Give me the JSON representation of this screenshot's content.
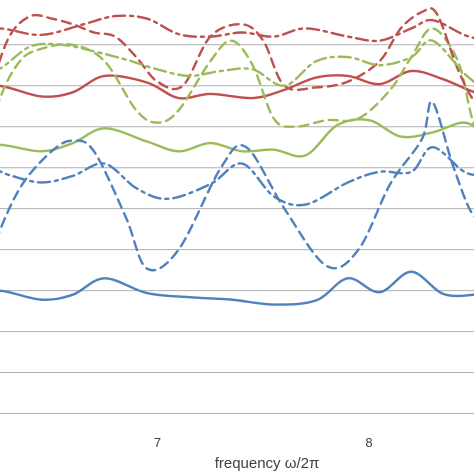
{
  "chart_data": {
    "type": "line",
    "title": "",
    "xlabel": "frequency ω/2π",
    "ylabel": "",
    "xlim": [
      6.1,
      8.6
    ],
    "ylim": [
      -0.25,
      4.9
    ],
    "x_ticks": [
      7,
      8
    ],
    "x_tick_labels": [
      "7",
      "8"
    ],
    "y_grid": [
      0,
      0.5,
      1,
      1.5,
      2,
      2.5,
      3,
      3.5,
      4,
      4.5
    ],
    "grid": true,
    "legend": "none",
    "series": [
      {
        "color": "#4f81bd",
        "dash": "solid",
        "x": [
          6.1,
          6.25,
          6.45,
          6.6,
          6.75,
          6.95,
          7.15,
          7.35,
          7.55,
          7.75,
          7.9,
          8.05,
          8.2,
          8.35,
          8.5,
          8.6
        ],
        "y": [
          1.43,
          1.5,
          1.39,
          1.45,
          1.65,
          1.47,
          1.42,
          1.39,
          1.33,
          1.38,
          1.65,
          1.48,
          1.73,
          1.46,
          1.45,
          1.5
        ]
      },
      {
        "color": "#4f81bd",
        "dash": "dashed",
        "x": [
          6.1,
          6.22,
          6.35,
          6.5,
          6.6,
          6.7,
          6.85,
          6.95,
          7.1,
          7.3,
          7.42,
          7.6,
          7.8,
          7.95,
          8.1,
          8.25,
          8.3,
          8.4,
          8.5,
          8.6
        ],
        "y": [
          1.07,
          2.0,
          2.75,
          3.2,
          3.33,
          3.2,
          2.4,
          1.77,
          2.0,
          3.0,
          3.25,
          2.5,
          1.8,
          2.0,
          2.8,
          3.35,
          3.8,
          3.0,
          2.4,
          2.5
        ]
      },
      {
        "color": "#4f81bd",
        "dash": "dashdot",
        "x": [
          6.1,
          6.2,
          6.3,
          6.45,
          6.6,
          6.75,
          6.9,
          7.05,
          7.25,
          7.4,
          7.55,
          7.7,
          7.9,
          8.05,
          8.2,
          8.3,
          8.45,
          8.55,
          8.6
        ],
        "y": [
          2.9,
          3.0,
          2.91,
          2.82,
          2.9,
          3.05,
          2.75,
          2.62,
          2.8,
          3.05,
          2.65,
          2.55,
          2.82,
          2.95,
          2.95,
          3.25,
          2.95,
          2.9,
          2.85
        ]
      },
      {
        "color": "#9bbb59",
        "dash": "solid",
        "x": [
          6.1,
          6.25,
          6.45,
          6.6,
          6.75,
          6.95,
          7.1,
          7.25,
          7.4,
          7.55,
          7.7,
          7.85,
          8.0,
          8.15,
          8.3,
          8.45,
          8.55,
          8.6
        ],
        "y": [
          3.2,
          3.28,
          3.2,
          3.3,
          3.48,
          3.32,
          3.2,
          3.3,
          3.2,
          3.22,
          3.15,
          3.52,
          3.58,
          3.38,
          3.43,
          3.55,
          3.4,
          3.35
        ]
      },
      {
        "color": "#9bbb59",
        "dash": "dashed",
        "x": [
          6.1,
          6.15,
          6.25,
          6.35,
          6.45,
          6.6,
          6.75,
          6.9,
          7.0,
          7.1,
          7.25,
          7.35,
          7.45,
          7.55,
          7.65,
          7.8,
          7.95,
          8.1,
          8.2,
          8.3,
          8.42,
          8.5,
          8.6
        ],
        "y": [
          2.3,
          2.8,
          3.8,
          4.3,
          4.45,
          4.5,
          4.3,
          3.7,
          3.55,
          3.7,
          4.3,
          4.55,
          4.25,
          3.6,
          3.5,
          3.58,
          3.6,
          3.95,
          4.35,
          4.7,
          4.3,
          3.5,
          3.2
        ]
      },
      {
        "color": "#9bbb59",
        "dash": "dashdot",
        "x": [
          6.1,
          6.25,
          6.4,
          6.55,
          6.7,
          6.85,
          7.0,
          7.15,
          7.3,
          7.45,
          7.6,
          7.75,
          7.9,
          8.05,
          8.2,
          8.3,
          8.45,
          8.55,
          8.6
        ],
        "y": [
          4.07,
          4.2,
          4.48,
          4.5,
          4.42,
          4.32,
          4.2,
          4.12,
          4.18,
          4.2,
          4.0,
          4.3,
          4.35,
          4.25,
          4.35,
          4.55,
          4.15,
          3.95,
          3.9
        ]
      },
      {
        "color": "#c0504d",
        "dash": "solid",
        "x": [
          6.1,
          6.25,
          6.45,
          6.6,
          6.75,
          6.95,
          7.1,
          7.25,
          7.45,
          7.6,
          7.75,
          7.9,
          8.05,
          8.2,
          8.35,
          8.5,
          8.6
        ],
        "y": [
          3.94,
          4.0,
          3.87,
          3.92,
          4.12,
          4.04,
          3.85,
          3.9,
          3.85,
          3.95,
          4.1,
          4.12,
          4.02,
          4.18,
          4.08,
          3.92,
          3.88
        ]
      },
      {
        "color": "#c0504d",
        "dash": "dashed",
        "x": [
          6.1,
          6.15,
          6.22,
          6.3,
          6.4,
          6.5,
          6.6,
          6.7,
          6.8,
          6.9,
          7.0,
          7.12,
          7.25,
          7.4,
          7.5,
          7.6,
          7.75,
          7.9,
          8.05,
          8.15,
          8.25,
          8.32,
          8.42,
          8.5,
          8.6
        ],
        "y": [
          2.5,
          3.2,
          4.0,
          4.6,
          4.85,
          4.82,
          4.75,
          4.65,
          4.6,
          4.35,
          4.05,
          4.0,
          4.6,
          4.75,
          4.55,
          4.0,
          3.98,
          4.05,
          4.3,
          4.7,
          4.9,
          4.88,
          4.2,
          3.8,
          3.55
        ]
      },
      {
        "color": "#c0504d",
        "dash": "dashdot",
        "x": [
          6.1,
          6.25,
          6.45,
          6.65,
          6.8,
          6.95,
          7.1,
          7.25,
          7.4,
          7.55,
          7.7,
          7.9,
          8.05,
          8.2,
          8.3,
          8.45,
          8.55,
          8.6
        ],
        "y": [
          4.62,
          4.7,
          4.62,
          4.75,
          4.85,
          4.82,
          4.63,
          4.6,
          4.65,
          4.6,
          4.7,
          4.6,
          4.55,
          4.7,
          4.8,
          4.62,
          4.55,
          4.5
        ]
      }
    ]
  }
}
